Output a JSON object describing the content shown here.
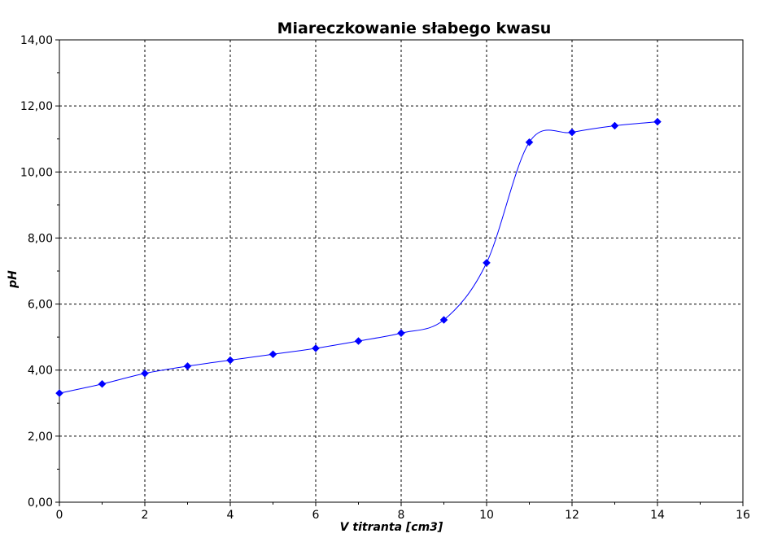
{
  "chart_data": {
    "type": "line",
    "title": "Miareczkowanie słabego kwasu",
    "xlabel": "V titranta [cm3]",
    "ylabel": "pH",
    "xlim": [
      0,
      16
    ],
    "ylim": [
      0,
      14
    ],
    "x_ticks": [
      "0",
      "2",
      "4",
      "6",
      "8",
      "10",
      "12",
      "14",
      "16"
    ],
    "y_ticks": [
      "0,00",
      "2,00",
      "4,00",
      "6,00",
      "8,00",
      "10,00",
      "12,00",
      "14,00"
    ],
    "grid": true,
    "legend": "none",
    "series": [
      {
        "x": [
          0,
          1,
          2,
          3,
          4,
          5,
          6,
          7,
          8,
          9,
          10,
          11,
          12,
          13,
          14
        ],
        "y": [
          3.3,
          3.58,
          3.9,
          4.12,
          4.3,
          4.48,
          4.66,
          4.88,
          5.12,
          5.52,
          7.25,
          10.9,
          11.2,
          11.4,
          11.52
        ],
        "color": "#0000ff"
      }
    ]
  }
}
